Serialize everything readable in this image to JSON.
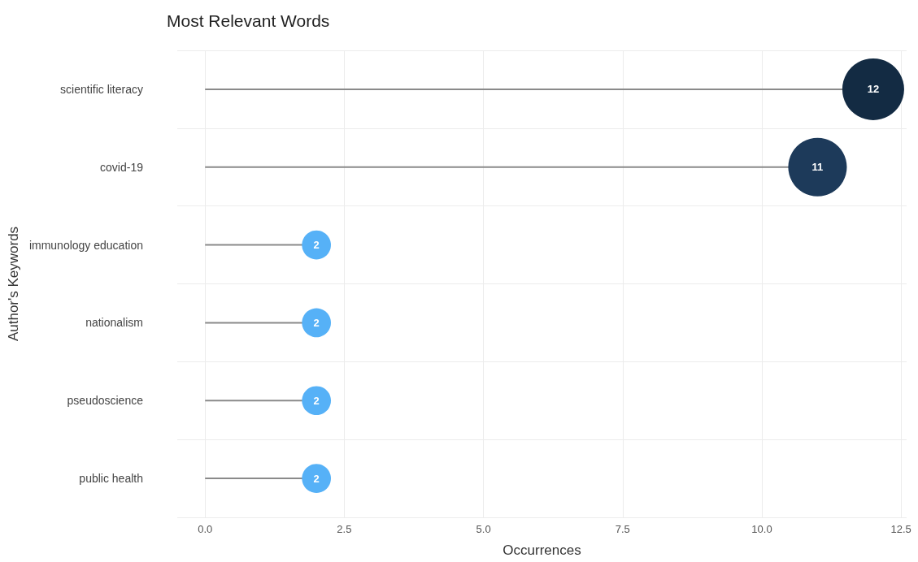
{
  "chart_data": {
    "type": "lollipop",
    "title": "Most Relevant Words",
    "xlabel": "Occurrences",
    "ylabel": "Author's Keywords",
    "orientation": "horizontal",
    "categories": [
      "scientific literacy",
      "covid-19",
      "immunology education",
      "nationalism",
      "pseudoscience",
      "public health"
    ],
    "values": [
      12,
      11,
      2,
      2,
      2,
      2
    ],
    "sizes": [
      1,
      0.9,
      0.22,
      0.22,
      0.22,
      0.22
    ],
    "colors": [
      "#132b43",
      "#1d3a5a",
      "#56b1f7",
      "#56b1f7",
      "#56b1f7",
      "#56b1f7"
    ],
    "xlim": [
      -0.5,
      12.6
    ],
    "xticks": [
      {
        "value": 0,
        "label": "0.0"
      },
      {
        "value": 2.5,
        "label": "2.5"
      },
      {
        "value": 5,
        "label": "5.0"
      },
      {
        "value": 7.5,
        "label": "7.5"
      },
      {
        "value": 10,
        "label": "10.0"
      },
      {
        "value": 12.5,
        "label": "12.5"
      }
    ],
    "data_labels": true,
    "grid": true
  }
}
